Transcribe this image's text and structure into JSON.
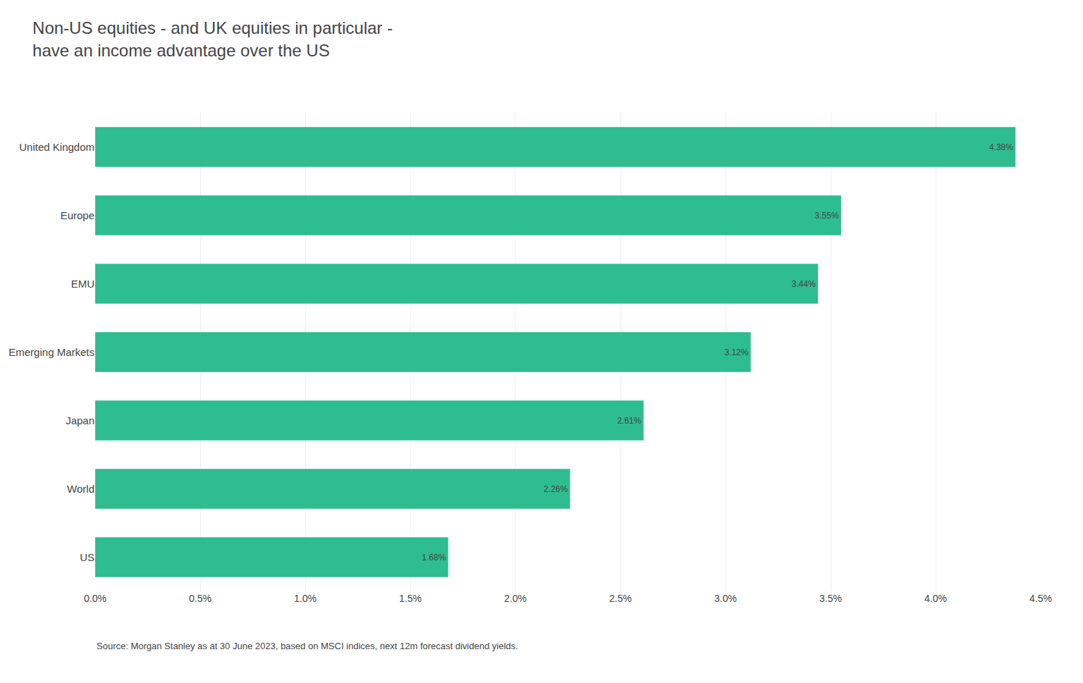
{
  "chart_data": {
    "type": "bar",
    "orientation": "horizontal",
    "title": "Non-US equities - and UK equities in particular -\nhave an income advantage over the US",
    "categories": [
      "United Kingdom",
      "Europe",
      "EMU",
      "Emerging Markets",
      "Japan",
      "World",
      "US"
    ],
    "values": [
      4.38,
      3.55,
      3.44,
      3.12,
      2.61,
      2.26,
      1.68
    ],
    "value_labels": [
      "4.38%",
      "3.55%",
      "3.44%",
      "3.12%",
      "2.61%",
      "2.26%",
      "1.68%"
    ],
    "data_labels": true,
    "color": "#2EBD8E",
    "xlim": [
      0,
      4.5
    ],
    "xticks": [
      {
        "value": 0.0,
        "label": "0.0%"
      },
      {
        "value": 0.5,
        "label": "0.5%"
      },
      {
        "value": 1.0,
        "label": "1.0%"
      },
      {
        "value": 1.5,
        "label": "1.5%"
      },
      {
        "value": 2.0,
        "label": "2.0%"
      },
      {
        "value": 2.5,
        "label": "2.5%"
      },
      {
        "value": 3.0,
        "label": "3.0%"
      },
      {
        "value": 3.5,
        "label": "3.5%"
      },
      {
        "value": 4.0,
        "label": "4.0%"
      },
      {
        "value": 4.5,
        "label": "4.5%"
      }
    ],
    "grid": true,
    "annotations": [
      "Source: Morgan Stanley as at 30 June 2023, based on MSCI indices, next 12m forecast dividend yields."
    ]
  }
}
